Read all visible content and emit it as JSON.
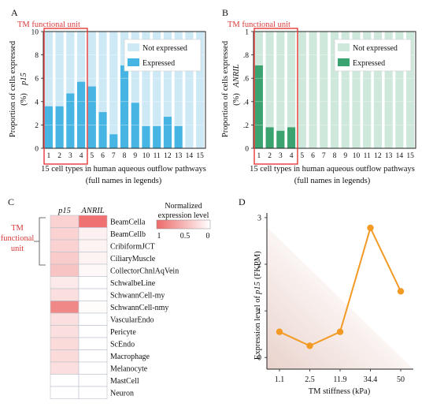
{
  "colors": {
    "not_expressed_p15": "#cde9f6",
    "expressed_p15": "#47b5e3",
    "not_expressed_anril": "#cfe8dc",
    "expressed_anril": "#3aa36f",
    "highlight": "#e53935",
    "heat_high": "#ee6a6a",
    "line": "#f39a25"
  },
  "panel_a": {
    "label": "A",
    "tm_label": "TM functional unit",
    "ylabel_prefix": "Proportion of cells expressed",
    "ylabel_gene": "p15",
    "ylabel_unit": "(%)",
    "xlabel_line1": "15 cell types in human aqueous outflow pathways",
    "xlabel_line2": "(full names in legends)"
  },
  "panel_b": {
    "label": "B",
    "tm_label": "TM functional unit",
    "ylabel_prefix": "Proportion of cells expressed",
    "ylabel_gene": "ANRIL",
    "ylabel_unit": "(%)",
    "xlabel_line1": "15 cell types in human aqueous outflow pathways",
    "xlabel_line2": "(full names in legends)"
  },
  "panel_c": {
    "label": "C",
    "col1": "p15",
    "col2": "ANRIL",
    "legend_title_1": "Normalized",
    "legend_title_2": "expression level",
    "legend_ticks": [
      "1",
      "0.5",
      "0"
    ],
    "tm_label": [
      "TM",
      "functional",
      "unit"
    ]
  },
  "panel_d": {
    "label": "D",
    "ylabel_prefix": "Expression level of",
    "ylabel_gene": "p15",
    "ylabel_unit": "(FKPM)",
    "xlabel": "TM stiffness (kPa)"
  },
  "chart_data": [
    {
      "type": "bar",
      "panel": "A",
      "stacked": true,
      "categories": [
        "1",
        "2",
        "3",
        "4",
        "5",
        "6",
        "7",
        "8",
        "9",
        "10",
        "11",
        "12",
        "13",
        "14",
        "15"
      ],
      "series": [
        {
          "name": "Expressed",
          "values": [
            3.6,
            3.6,
            4.7,
            5.7,
            5.3,
            3.1,
            1.2,
            7.1,
            3.9,
            1.9,
            1.9,
            2.7,
            1.9,
            0,
            0
          ]
        },
        {
          "name": "Not expressed",
          "values": [
            6.4,
            6.4,
            5.3,
            4.3,
            4.7,
            6.9,
            8.8,
            2.9,
            6.1,
            8.1,
            8.1,
            7.3,
            8.1,
            10,
            10
          ]
        }
      ],
      "ylim": [
        0,
        10
      ],
      "yticks": [
        0,
        2,
        4,
        6,
        8,
        10
      ],
      "legend": "top-right",
      "grid": true
    },
    {
      "type": "bar",
      "panel": "B",
      "stacked": true,
      "categories": [
        "1",
        "2",
        "3",
        "4",
        "5",
        "6",
        "7",
        "8",
        "9",
        "10",
        "11",
        "12",
        "13",
        "14",
        "15"
      ],
      "series": [
        {
          "name": "Expressed",
          "values": [
            0.71,
            0.18,
            0.15,
            0.18,
            0,
            0,
            0,
            0,
            0,
            0,
            0,
            0,
            0,
            0,
            0
          ]
        },
        {
          "name": "Not expressed",
          "values": [
            0.29,
            0.82,
            0.85,
            0.82,
            1,
            1,
            1,
            1,
            1,
            1,
            1,
            1,
            1,
            1,
            1
          ]
        }
      ],
      "ylim": [
        0,
        1
      ],
      "yticks": [
        0,
        0.2,
        0.4,
        0.6,
        0.8,
        1
      ],
      "legend": "top-right",
      "grid": true
    },
    {
      "type": "heatmap",
      "panel": "C",
      "rows": [
        "BeamCella",
        "BeamCellb",
        "CribiformJCT",
        "CiliaryMuscle",
        "CollectorChnlAqVein",
        "SchwalbeLine",
        "SchwannCell-my",
        "SchwannCell-nmy",
        "VascularEndo",
        "Pericyte",
        "ScEndo",
        "Macrophage",
        "Melanocyte",
        "MastCell",
        "Neuron"
      ],
      "columns": [
        "p15",
        "ANRIL"
      ],
      "values": [
        [
          0.3,
          0.95
        ],
        [
          0.3,
          0.1
        ],
        [
          0.3,
          0.08
        ],
        [
          0.35,
          0.08
        ],
        [
          0.4,
          0.05
        ],
        [
          0.15,
          0.0
        ],
        [
          0.22,
          0.0
        ],
        [
          0.8,
          0.02
        ],
        [
          0.22,
          0.0
        ],
        [
          0.22,
          0.0
        ],
        [
          0.25,
          0.0
        ],
        [
          0.25,
          0.0
        ],
        [
          0.22,
          0.0
        ],
        [
          0.0,
          0.0
        ],
        [
          0.0,
          0.0
        ]
      ],
      "scale": [
        0,
        1
      ]
    },
    {
      "type": "line",
      "panel": "D",
      "categories": [
        "1.1",
        "2.5",
        "11.9",
        "34.4",
        "50"
      ],
      "values": [
        0.55,
        0.25,
        0.55,
        2.78,
        1.42
      ],
      "ylim": [
        -0.25,
        3.1
      ],
      "yticks": [
        0,
        1,
        2,
        3
      ],
      "xlabel": "TM stiffness (kPa)",
      "ylabel": "Expression level of p15 (FKPM)"
    }
  ]
}
